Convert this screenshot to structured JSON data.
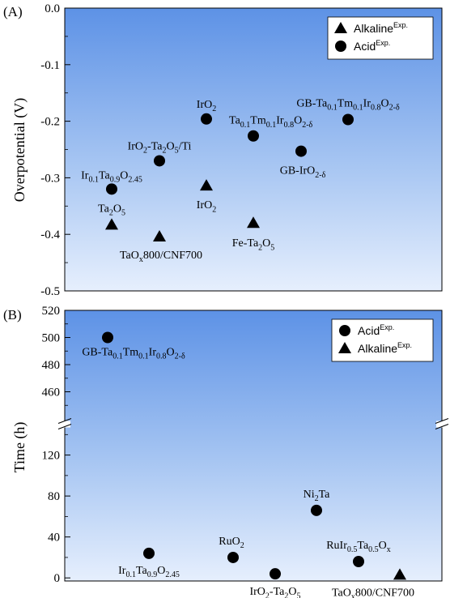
{
  "chart_data": [
    {
      "panel_label": "(A)",
      "type": "scatter",
      "ylabel": "Overpotential (V)",
      "ylim": [
        -0.5,
        0.0
      ],
      "yticks": [
        "0.0",
        "-0.1",
        "-0.2",
        "-0.3",
        "-0.4",
        "-0.5"
      ],
      "x_positions": "categorical",
      "grid": false,
      "legend_placement": "top-right",
      "legend": [
        {
          "marker": "triangle",
          "label": "Alkaline",
          "sup": "Exp."
        },
        {
          "marker": "circle",
          "label": "Acid",
          "sup": "Exp."
        }
      ],
      "points": [
        {
          "marker": "triangle",
          "y": -0.383,
          "label": [
            [
              "Ta",
              ""
            ],
            [
              "2",
              "sub"
            ],
            [
              "O",
              ""
            ],
            [
              "5",
              "sub"
            ]
          ]
        },
        {
          "marker": "circle",
          "y": -0.32,
          "label": [
            [
              "Ir",
              ""
            ],
            [
              "0.1",
              "sub"
            ],
            [
              "Ta",
              ""
            ],
            [
              "0.9",
              "sub"
            ],
            [
              "O",
              ""
            ],
            [
              "2.45",
              "sub"
            ]
          ]
        },
        {
          "marker": "triangle",
          "y": -0.404,
          "label": [
            [
              "TaO",
              ""
            ],
            [
              "x",
              "sub"
            ],
            [
              "800/CNF700",
              ""
            ]
          ]
        },
        {
          "marker": "circle",
          "y": -0.27,
          "label": [
            [
              "IrO",
              ""
            ],
            [
              "2",
              "sub"
            ],
            [
              "-Ta",
              ""
            ],
            [
              "2",
              "sub"
            ],
            [
              "O",
              ""
            ],
            [
              "5",
              "sub"
            ],
            [
              "/Ti",
              ""
            ]
          ]
        },
        {
          "marker": "circle",
          "y": -0.196,
          "label": [
            [
              "IrO",
              ""
            ],
            [
              "2",
              "sub"
            ]
          ]
        },
        {
          "marker": "triangle",
          "y": -0.314,
          "label": [
            [
              "IrO",
              ""
            ],
            [
              "2",
              "sub"
            ]
          ]
        },
        {
          "marker": "circle",
          "y": -0.226,
          "label": [
            [
              "Ta",
              ""
            ],
            [
              "0.1",
              "sub"
            ],
            [
              "Tm",
              ""
            ],
            [
              "0.1",
              "sub"
            ],
            [
              "Ir",
              ""
            ],
            [
              "0.8",
              "sub"
            ],
            [
              "O",
              ""
            ],
            [
              "2-δ",
              "sub"
            ]
          ]
        },
        {
          "marker": "triangle",
          "y": -0.38,
          "label": [
            [
              "Fe-Ta",
              ""
            ],
            [
              "2",
              "sub"
            ],
            [
              "O",
              ""
            ],
            [
              "5",
              "sub"
            ]
          ]
        },
        {
          "marker": "circle",
          "y": -0.253,
          "label": [
            [
              "GB-IrO",
              ""
            ],
            [
              "2-δ",
              "sub"
            ]
          ]
        },
        {
          "marker": "circle",
          "y": -0.197,
          "label": [
            [
              "GB-Ta",
              ""
            ],
            [
              "0.1",
              "sub"
            ],
            [
              "Tm",
              ""
            ],
            [
              "0.1",
              "sub"
            ],
            [
              "Ir",
              ""
            ],
            [
              "0.8",
              "sub"
            ],
            [
              "O",
              ""
            ],
            [
              "2-δ",
              "sub"
            ]
          ]
        }
      ]
    },
    {
      "panel_label": "(B)",
      "type": "scatter",
      "ylabel": "Time (h)",
      "y_axis_break": [
        140,
        460
      ],
      "ylim_lower": [
        -3,
        145
      ],
      "ylim_upper": [
        440,
        520
      ],
      "yticks": [
        "0",
        "40",
        "80",
        "120",
        "460",
        "480",
        "500",
        "520"
      ],
      "x_positions": "categorical",
      "grid": false,
      "legend_placement": "top-right",
      "legend": [
        {
          "marker": "circle",
          "label": "Acid",
          "sup": "Exp."
        },
        {
          "marker": "triangle",
          "label": "Alkaline",
          "sup": "Exp."
        }
      ],
      "points": [
        {
          "marker": "circle",
          "y": 500,
          "label": [
            [
              "GB-Ta",
              ""
            ],
            [
              "0.1",
              "sub"
            ],
            [
              "Tm",
              ""
            ],
            [
              "0.1",
              "sub"
            ],
            [
              "Ir",
              ""
            ],
            [
              "0.8",
              "sub"
            ],
            [
              "O",
              ""
            ],
            [
              "2-δ",
              "sub"
            ]
          ]
        },
        {
          "marker": "circle",
          "y": 24,
          "label": [
            [
              "Ir",
              ""
            ],
            [
              "0.1",
              "sub"
            ],
            [
              "Ta",
              ""
            ],
            [
              "0.9",
              "sub"
            ],
            [
              "O",
              ""
            ],
            [
              "2.45",
              "sub"
            ]
          ]
        },
        {
          "marker": "circle",
          "y": 20,
          "label": [
            [
              "RuO",
              ""
            ],
            [
              "2",
              "sub"
            ]
          ]
        },
        {
          "marker": "circle",
          "y": 4,
          "label": [
            [
              "IrO",
              ""
            ],
            [
              "2",
              "sub"
            ],
            [
              "-Ta",
              ""
            ],
            [
              "2",
              "sub"
            ],
            [
              "O",
              ""
            ],
            [
              "5",
              "sub"
            ]
          ]
        },
        {
          "marker": "circle",
          "y": 66,
          "label": [
            [
              "Ni",
              ""
            ],
            [
              "2",
              "sub"
            ],
            [
              "Ta",
              ""
            ]
          ]
        },
        {
          "marker": "circle",
          "y": 16,
          "label": [
            [
              "RuIr",
              ""
            ],
            [
              "0.5",
              "sub"
            ],
            [
              "Ta",
              ""
            ],
            [
              "0.5",
              "sub"
            ],
            [
              "O",
              ""
            ],
            [
              "x",
              "sub"
            ]
          ]
        },
        {
          "marker": "triangle",
          "y": 3,
          "label": [
            [
              "TaO",
              ""
            ],
            [
              "x",
              "sub"
            ],
            [
              "800/CNF700",
              ""
            ]
          ]
        }
      ]
    }
  ]
}
